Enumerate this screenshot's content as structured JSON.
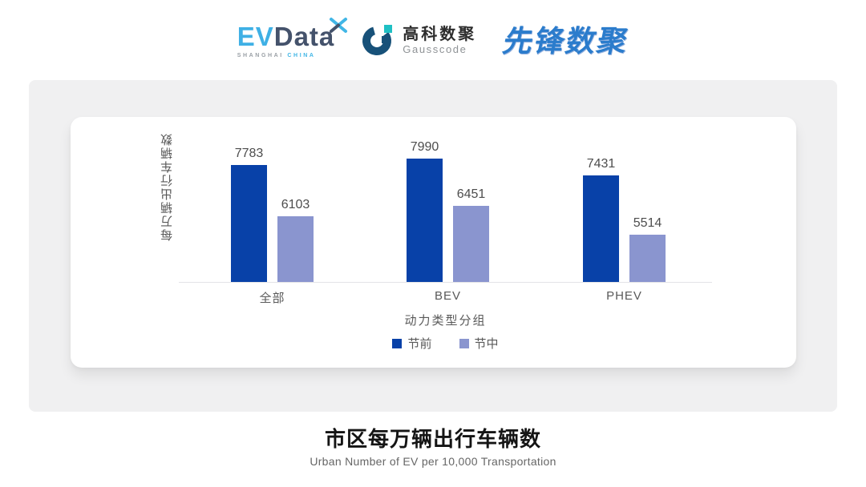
{
  "header": {
    "evdata": {
      "ev": "EV",
      "data": "Data",
      "sub_left": "SHANGHAI",
      "sub_right": "CHINA"
    },
    "gausscode": {
      "cn": "高科数聚",
      "en": "Gausscode"
    },
    "pioneer": {
      "text": "先锋数聚"
    }
  },
  "chart_data": {
    "type": "bar",
    "categories": [
      "全部",
      "BEV",
      "PHEV"
    ],
    "series": [
      {
        "name": "节前",
        "color": "#0841a8",
        "values": [
          7783,
          7990,
          7431
        ]
      },
      {
        "name": "节中",
        "color": "#8a95cf",
        "values": [
          6103,
          6451,
          5514
        ]
      }
    ],
    "ylabel": "每万辆出行车辆数",
    "xlabel": "动力类型分组",
    "value_labels_shown": true,
    "value_axis_min": 4000,
    "grid": false,
    "legend_position": "bottom"
  },
  "footer": {
    "title": "市区每万辆出行车辆数",
    "subtitle": "Urban Number of EV per 10,000 Transportation"
  },
  "colors": {
    "series_dark": "#0841a8",
    "series_light": "#8a95cf",
    "panel_bg": "#f0f0f1",
    "card_bg": "#ffffff",
    "axis_line": "#e4e4e7",
    "evdata_blue": "#3fb0e5",
    "evdata_slate": "#44526b",
    "gauss_navy": "#175179",
    "gauss_teal": "#1fc0c4",
    "pioneer_blue": "#2b7ccc"
  }
}
